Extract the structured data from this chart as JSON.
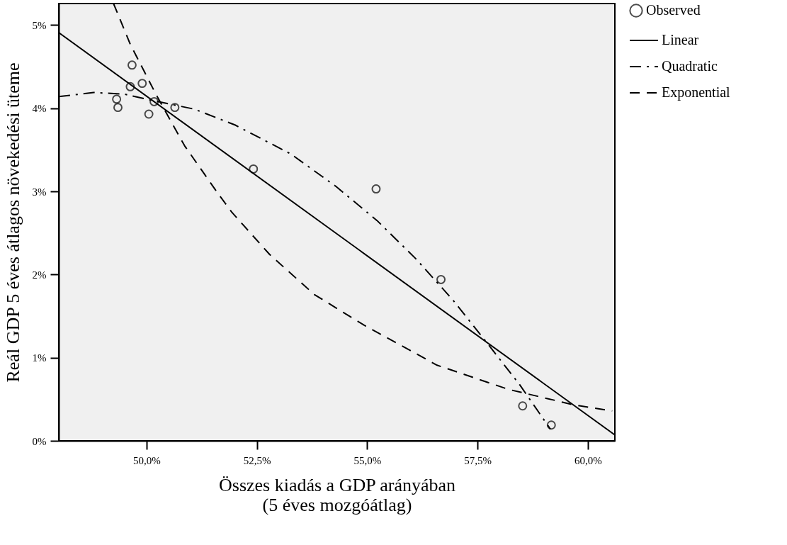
{
  "chart_data": {
    "type": "scatter",
    "xlabel": "Összes kiadás a GDP arányában\n(5 éves mozgóátlag)",
    "ylabel": "Reál GDP 5 éves átlagos növekedési üteme",
    "xlim": [
      48.01,
      60.61
    ],
    "ylim": [
      0,
      5.26
    ],
    "xticks": [
      {
        "value": 50,
        "label": "50,0%"
      },
      {
        "value": 52.5,
        "label": "52,5%"
      },
      {
        "value": 55,
        "label": "55,0%"
      },
      {
        "value": 57.5,
        "label": "57,5%"
      },
      {
        "value": 60,
        "label": "60,0%"
      }
    ],
    "yticks": [
      {
        "value": 0,
        "label": "0%"
      },
      {
        "value": 1,
        "label": "1%"
      },
      {
        "value": 2,
        "label": "2%"
      },
      {
        "value": 3,
        "label": "3%"
      },
      {
        "value": 4,
        "label": "4%"
      },
      {
        "value": 5,
        "label": "5%"
      }
    ],
    "grid": false,
    "legend": "right",
    "series": [
      {
        "name": "Observed",
        "marker": "circle",
        "color": "#000000",
        "x": [
          49.67,
          49.9,
          49.63,
          49.32,
          49.35,
          50.17,
          50.64,
          50.05,
          52.42,
          55.2,
          56.67,
          58.52,
          59.17
        ],
        "values": [
          4.52,
          4.3,
          4.26,
          4.11,
          4.01,
          4.08,
          4.01,
          3.93,
          3.27,
          3.03,
          1.94,
          0.42,
          0.19
        ]
      },
      {
        "name": "Linear",
        "type": "line",
        "line_style": "solid",
        "color": "#000000",
        "x": [
          48.01,
          60.61
        ],
        "values": [
          4.91,
          0.07
        ]
      },
      {
        "name": "Quadratic",
        "type": "line",
        "line_style": "dashdot",
        "color": "#000000",
        "x": [
          48.01,
          48.8,
          49.5,
          50.17,
          51.08,
          52.0,
          53.27,
          54.29,
          55.22,
          56.1,
          56.93,
          57.71,
          58.46,
          59.15
        ],
        "values": [
          4.14,
          4.19,
          4.17,
          4.09,
          3.99,
          3.8,
          3.45,
          3.06,
          2.65,
          2.19,
          1.7,
          1.18,
          0.67,
          0.14
        ]
      },
      {
        "name": "Exponential",
        "type": "line",
        "line_style": "dashed",
        "color": "#000000",
        "x": [
          49.25,
          49.63,
          50.22,
          50.86,
          51.61,
          51.93,
          52.79,
          53.8,
          54.93,
          56.58,
          58.19,
          59.7,
          60.55
        ],
        "values": [
          5.26,
          4.77,
          4.16,
          3.55,
          2.98,
          2.75,
          2.24,
          1.76,
          1.39,
          0.91,
          0.62,
          0.43,
          0.36
        ]
      }
    ]
  }
}
